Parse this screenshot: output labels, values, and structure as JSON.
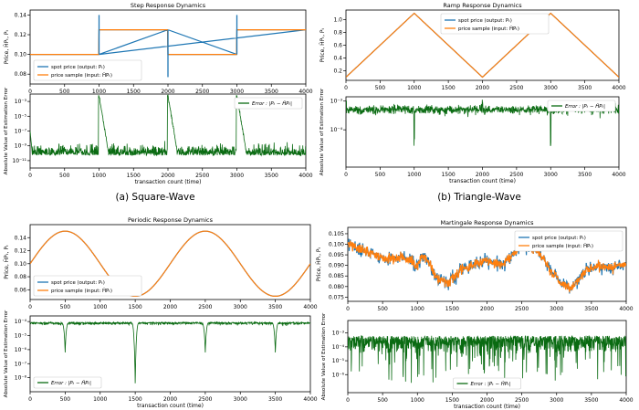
{
  "colors": {
    "spot": "#1f77b4",
    "sample": "#ff7f0e",
    "error": "#0a6b12",
    "frame": "#000000"
  },
  "captions": [
    "(a) Square-Wave",
    "(b) Triangle-Wave"
  ],
  "chart_data": [
    {
      "id": "square",
      "type": "line",
      "title": "Step Response Dynamics",
      "ylabel": "Price, ĤPₜ, Pₜ",
      "xlim": [
        0,
        4000
      ],
      "ylim": [
        0.07,
        0.145
      ],
      "xticks": [
        0,
        500,
        1000,
        1500,
        2000,
        2500,
        3000,
        3500,
        4000
      ],
      "yticks": [
        0.08,
        0.1,
        0.12,
        0.14
      ],
      "ytick_labels": [
        "0.08",
        "0.10",
        "0.12",
        "0.14"
      ],
      "signal": {
        "kind": "square",
        "levels": [
          0.1,
          0.125
        ],
        "switch_points": [
          1000,
          2000,
          3000
        ],
        "spike_high": 0.14,
        "spike_low": 0.077
      },
      "series": [
        {
          "name": "spot price (output: Pₜ)",
          "color": "#1f77b4"
        },
        {
          "name": "price sample (input: ĤPₜ)",
          "color": "#ff7f0e"
        }
      ],
      "legend": "lower-left",
      "error": {
        "label": "Error : |Pₜ − ĤPₜ|",
        "ylabel": "Absolute Value of Estimation Error",
        "xlabel": "transaction count (time)",
        "ylim_log": [
          -12,
          -2
        ],
        "yticks_exp": [
          -3,
          -5,
          -7,
          -9,
          -11
        ],
        "ytick_labels": [
          "10⁻³",
          "10⁻⁵",
          "10⁻⁷",
          "10⁻⁹",
          "10⁻¹¹"
        ],
        "noise_level_exp": -10,
        "peak_exp": -2.2,
        "decay_exp_end": -9.5,
        "decay_length": 130,
        "legend": "upper-right"
      }
    },
    {
      "id": "triangle",
      "type": "line",
      "title": "Ramp Response Dynamics",
      "ylabel": "Price, ĤPₜ, Pₜ",
      "xlim": [
        0,
        4000
      ],
      "ylim": [
        0.05,
        1.15
      ],
      "xticks": [
        0,
        500,
        1000,
        1500,
        2000,
        2500,
        3000,
        3500,
        4000
      ],
      "yticks": [
        0.2,
        0.4,
        0.6,
        0.8,
        1.0
      ],
      "ytick_labels": [
        "0.2",
        "0.4",
        "0.6",
        "0.8",
        "1.0"
      ],
      "signal": {
        "kind": "triangle",
        "low": 0.1,
        "high": 1.1,
        "period": 2000
      },
      "series": [
        {
          "name": "spot price (output: Pₜ)",
          "color": "#1f77b4"
        },
        {
          "name": "price sample (input: ĤPₜ)",
          "color": "#ff7f0e"
        }
      ],
      "legend": "upper-left",
      "error": {
        "label": "Error : |Pₜ − ĤPₜ|",
        "ylabel": "Absolute Value of Estimation Error",
        "xlabel": "transaction count (time)",
        "ylim_log": [
          -5.3,
          -2.85
        ],
        "yticks_exp": [
          -3,
          -4
        ],
        "ytick_labels": [
          "10⁻³",
          "10⁻⁴"
        ],
        "noise_level_exp": -3.3,
        "dip_points": [
          1000,
          3000
        ],
        "dip_exp": -4.6,
        "legend": "upper-right"
      }
    },
    {
      "id": "periodic",
      "type": "line",
      "title": "Periodic Response Dynamics",
      "ylabel": "Price, ĤPₜ, Pₜ",
      "xlim": [
        0,
        4000
      ],
      "ylim": [
        0.045,
        0.16
      ],
      "xticks": [
        0,
        500,
        1000,
        1500,
        2000,
        2500,
        3000,
        3500,
        4000
      ],
      "yticks": [
        0.06,
        0.08,
        0.1,
        0.12,
        0.14
      ],
      "ytick_labels": [
        "0.06",
        "0.08",
        "0.10",
        "0.12",
        "0.14"
      ],
      "signal": {
        "kind": "sine",
        "mean": 0.1,
        "amplitude": 0.05,
        "period": 2000
      },
      "series": [
        {
          "name": "spot price (output: Pₜ)",
          "color": "#1f77b4"
        },
        {
          "name": "price sample (input: ĤPₜ)",
          "color": "#ff7f0e"
        }
      ],
      "legend": "lower-left",
      "error": {
        "label": "Error : |Pₜ − ĤPₜ|",
        "ylabel": "Absolute Value of Estimation Error",
        "xlabel": "transaction count (time)",
        "ylim_log": [
          -9,
          -3.6
        ],
        "yticks_exp": [
          -4,
          -5,
          -6,
          -7,
          -8
        ],
        "ytick_labels": [
          "10⁻⁴",
          "10⁻⁵",
          "10⁻⁶",
          "10⁻⁷",
          "10⁻⁸"
        ],
        "noise_level_exp": -4.05,
        "dip_points": [
          500,
          1500,
          2500,
          3500
        ],
        "dip_exp": -6.2,
        "deep_dip_exp": -8.4,
        "legend": "lower-left"
      }
    },
    {
      "id": "martingale",
      "type": "line",
      "title": "Martingale Response Dynamics",
      "ylabel": "Price, ĤPₜ, Pₜ",
      "xlim": [
        0,
        4000
      ],
      "ylim": [
        0.073,
        0.108
      ],
      "xticks": [
        0,
        500,
        1000,
        1500,
        2000,
        2500,
        3000,
        3500,
        4000
      ],
      "yticks": [
        0.075,
        0.08,
        0.085,
        0.09,
        0.095,
        0.1,
        0.105
      ],
      "ytick_labels": [
        "0.075",
        "0.080",
        "0.085",
        "0.090",
        "0.095",
        "0.100",
        "0.105"
      ],
      "signal": {
        "kind": "random-walk",
        "anchors": [
          [
            0,
            0.1
          ],
          [
            250,
            0.097
          ],
          [
            500,
            0.093
          ],
          [
            800,
            0.094
          ],
          [
            1000,
            0.09
          ],
          [
            1100,
            0.095
          ],
          [
            1300,
            0.083
          ],
          [
            1450,
            0.082
          ],
          [
            1650,
            0.088
          ],
          [
            1850,
            0.091
          ],
          [
            2000,
            0.092
          ],
          [
            2200,
            0.09
          ],
          [
            2400,
            0.096
          ],
          [
            2500,
            0.101
          ],
          [
            2600,
            0.098
          ],
          [
            2750,
            0.096
          ],
          [
            2900,
            0.088
          ],
          [
            3000,
            0.084
          ],
          [
            3100,
            0.081
          ],
          [
            3200,
            0.079
          ],
          [
            3400,
            0.087
          ],
          [
            3600,
            0.09
          ],
          [
            3800,
            0.089
          ],
          [
            4000,
            0.09
          ]
        ]
      },
      "series": [
        {
          "name": "spot price (output: Pₜ)",
          "color": "#1f77b4"
        },
        {
          "name": "price sample (input: ĤPₜ)",
          "color": "#ff7f0e"
        }
      ],
      "legend": "upper-right",
      "error": {
        "label": "Error : |Pₜ − ĤPₜ|",
        "ylabel": "Absolute Value of Estimation Error",
        "xlabel": "transaction count (time)",
        "ylim_log": [
          -7.3,
          -2.1
        ],
        "yticks_exp": [
          -3,
          -4,
          -5,
          -6
        ],
        "ytick_labels": [
          "10⁻³",
          "10⁻⁴",
          "10⁻⁵",
          "10⁻⁶"
        ],
        "noise_level_exp": -3.2,
        "noise_span_exp": [
          -6.6,
          -2.3
        ],
        "legend": "lower-center"
      }
    }
  ]
}
